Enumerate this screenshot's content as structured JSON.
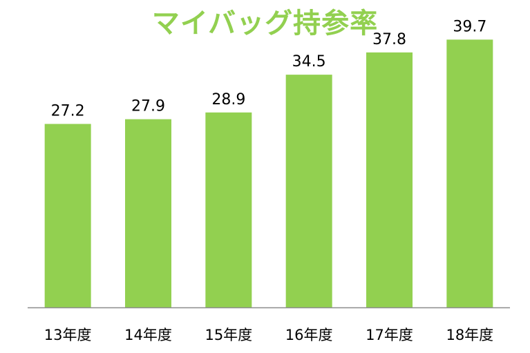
{
  "colors": {
    "bar": "#92D050",
    "title": "#92D050",
    "axis": "#8c8c8c",
    "text": "#000000"
  },
  "chart_data": {
    "type": "bar",
    "title": "マイバッグ持参率",
    "xlabel": "",
    "ylabel": "",
    "categories": [
      "13年度",
      "14年度",
      "15年度",
      "16年度",
      "17年度",
      "18年度"
    ],
    "values": [
      27.2,
      27.9,
      28.9,
      34.5,
      37.8,
      39.7
    ],
    "data_labels": [
      "27.2",
      "27.9",
      "28.9",
      "34.5",
      "37.8",
      "39.7"
    ],
    "ylim": [
      0,
      42.5
    ],
    "grid": false,
    "legend": "none"
  }
}
